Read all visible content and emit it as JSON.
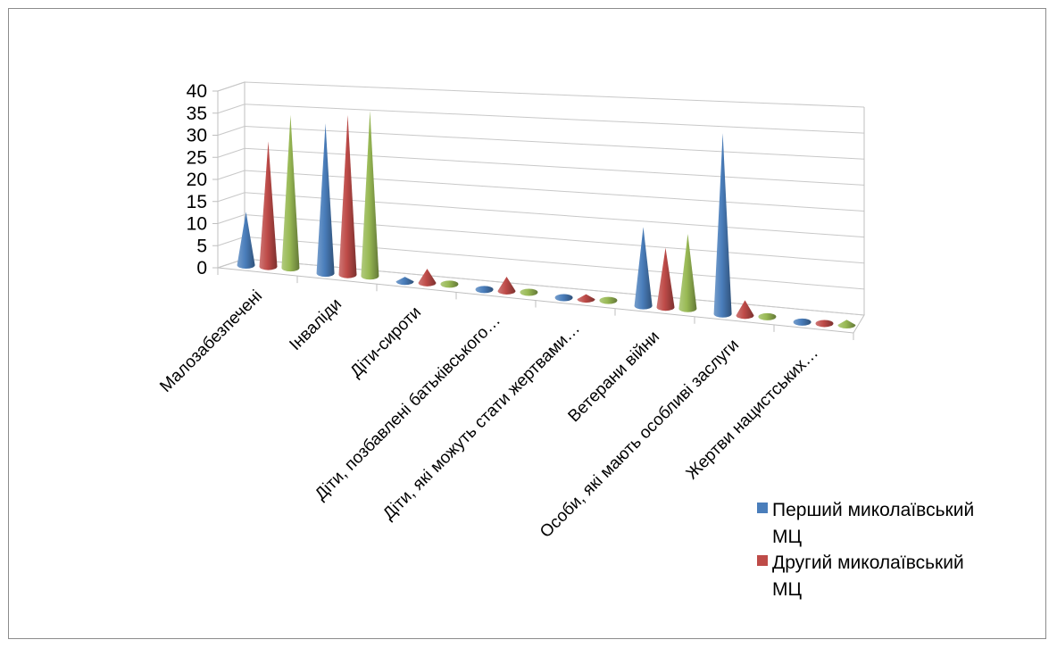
{
  "chart_data": {
    "type": "bar",
    "shape": "cone-3d",
    "categories": [
      "Малозабезпечені",
      "Інваліди",
      "Діти-сироти",
      "Діти, позбавлені батьківського…",
      "Діти, які можуть стати жертвами…",
      "Ветерани війни",
      "Особи, які мають особливі заслуги",
      "Жертви нацистських…"
    ],
    "series": [
      {
        "name": "Перший миколаївський МЦ",
        "color": "#4a7ebb",
        "values": [
          12,
          33,
          1,
          0,
          0,
          16,
          36,
          0
        ]
      },
      {
        "name": "Другий  миколаївський МЦ",
        "color": "#be4b48",
        "values": [
          28,
          35,
          3,
          3,
          1,
          12,
          3,
          0
        ]
      },
      {
        "name": "",
        "color": "#98b954",
        "values": [
          34,
          36,
          0,
          0,
          0,
          15,
          0,
          1
        ]
      }
    ],
    "y_ticks": [
      "0",
      "5",
      "10",
      "15",
      "20",
      "25",
      "30",
      "35",
      "40"
    ],
    "ylim": [
      0,
      40
    ],
    "grid": true,
    "legend_position": "bottom-right",
    "legend": [
      {
        "lines": [
          "Перший миколаївський",
          "МЦ"
        ],
        "color": "#4a7ebb"
      },
      {
        "lines": [
          "Другий  миколаївський",
          "МЦ"
        ],
        "color": "#be4b48"
      }
    ]
  }
}
